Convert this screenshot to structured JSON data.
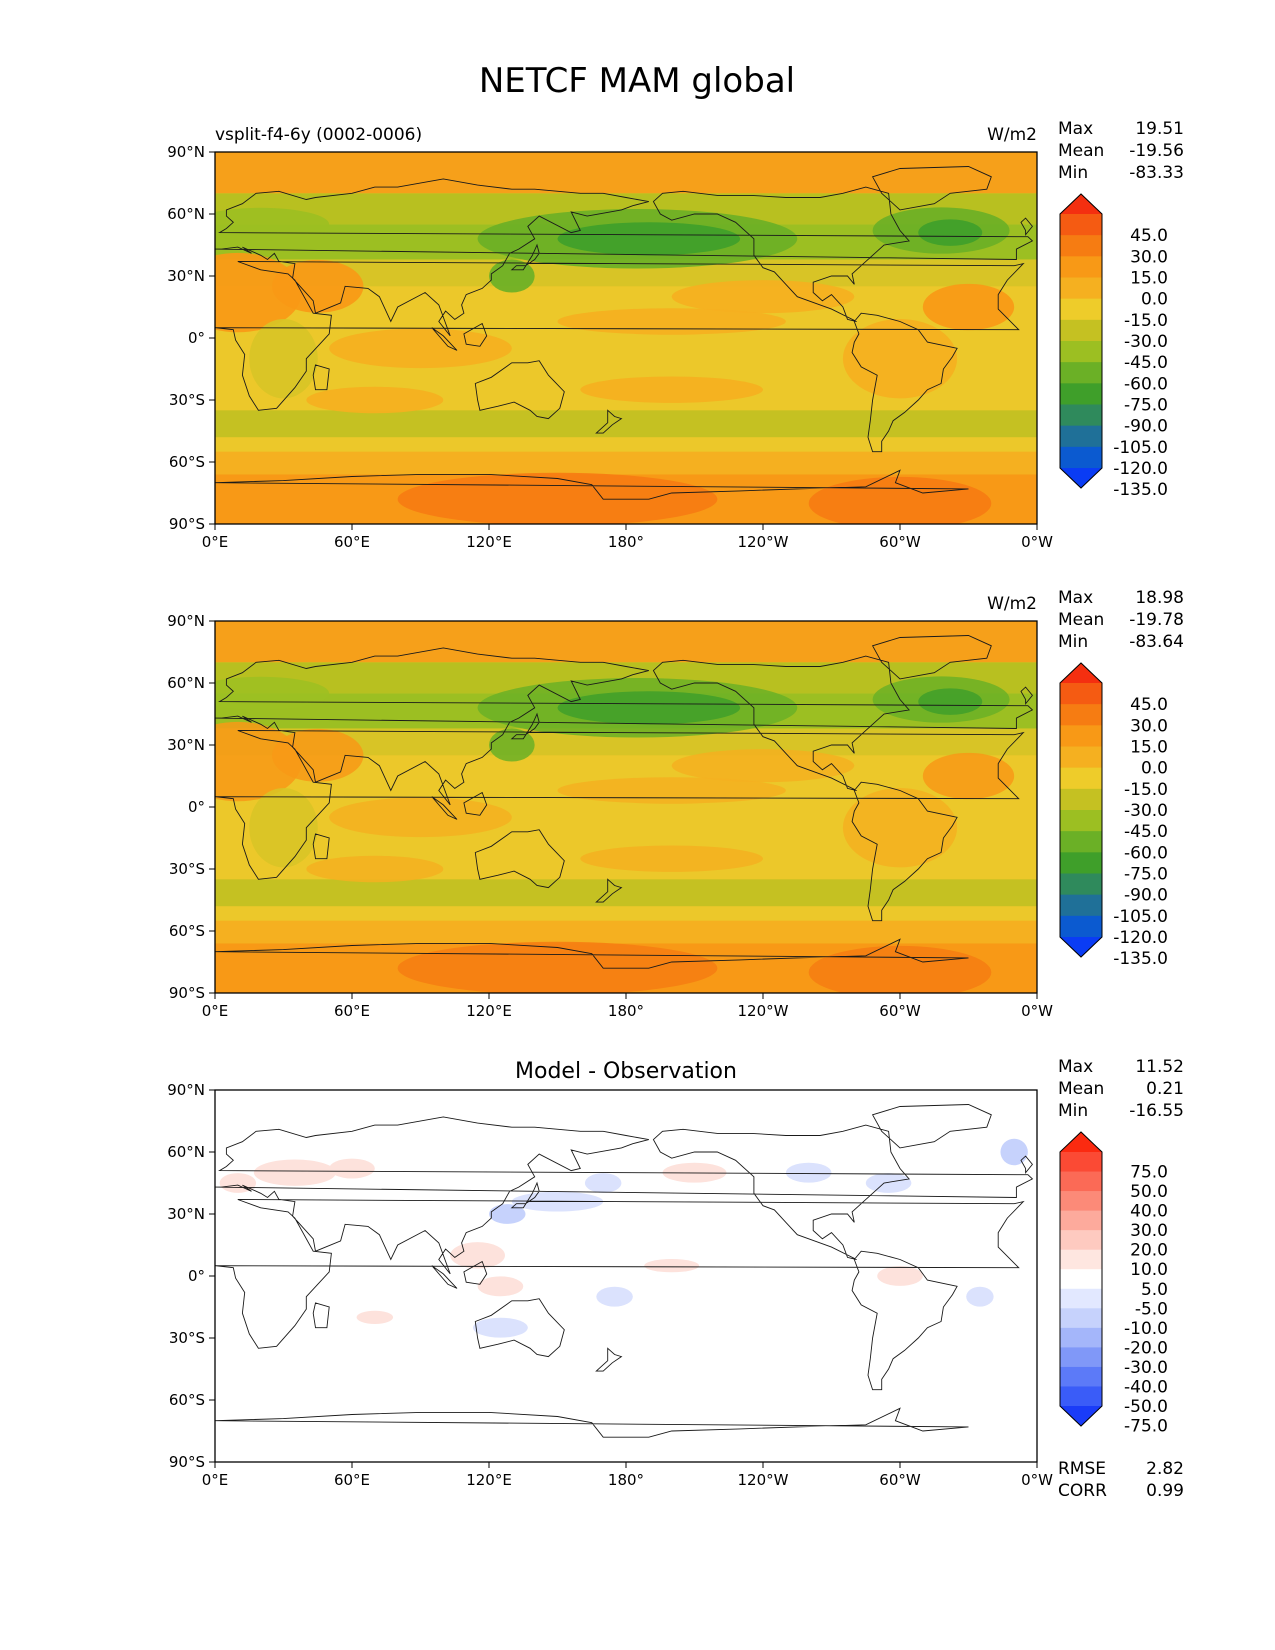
{
  "chart_data": {
    "type": "heatmap",
    "title": "NETCF MAM global",
    "x_ticks": [
      "0°E",
      "60°E",
      "120°E",
      "180°",
      "120°W",
      "60°W",
      "0°W"
    ],
    "y_ticks": [
      "90°N",
      "60°N",
      "30°N",
      "0°",
      "30°S",
      "60°S",
      "90°S"
    ],
    "stat_labels": [
      "Max",
      "Mean",
      "Min"
    ],
    "panels": [
      {
        "left_title": "vsplit-f4-6y (0002-0006)",
        "center_title": "",
        "units": "W/m2",
        "stats": [
          "19.51",
          "-19.56",
          "-83.33"
        ],
        "colorbar_labels": [
          "45.0",
          "30.0",
          "15.0",
          "0.0",
          "-15.0",
          "-30.0",
          "-45.0",
          "-60.0",
          "-75.0",
          "-90.0",
          "-105.0",
          "-120.0",
          "-135.0"
        ],
        "colorbar_colors": [
          "#f42f10",
          "#f55b12",
          "#f67c12",
          "#f89916",
          "#f5b020",
          "#eecc2a",
          "#c5c122",
          "#9cbf22",
          "#6bb026",
          "#3f9f2a",
          "#2f8a5c",
          "#1f7098",
          "#0b5ad0",
          "#0a3cf4"
        ]
      },
      {
        "left_title": "",
        "center_title": "",
        "units": "W/m2",
        "stats": [
          "18.98",
          "-19.78",
          "-83.64"
        ],
        "colorbar_labels": [
          "45.0",
          "30.0",
          "15.0",
          "0.0",
          "-15.0",
          "-30.0",
          "-45.0",
          "-60.0",
          "-75.0",
          "-90.0",
          "-105.0",
          "-120.0",
          "-135.0"
        ],
        "colorbar_colors": [
          "#f42f10",
          "#f55b12",
          "#f67c12",
          "#f89916",
          "#f5b020",
          "#eecc2a",
          "#c5c122",
          "#9cbf22",
          "#6bb026",
          "#3f9f2a",
          "#2f8a5c",
          "#1f7098",
          "#0b5ad0",
          "#0a3cf4"
        ]
      },
      {
        "left_title": "",
        "center_title": "Model - Observation",
        "units": "",
        "stats": [
          "11.52",
          "0.21",
          "-16.55"
        ],
        "colorbar_labels": [
          "75.0",
          "50.0",
          "40.0",
          "30.0",
          "20.0",
          "10.0",
          "5.0",
          "-5.0",
          "-10.0",
          "-20.0",
          "-30.0",
          "-40.0",
          "-50.0",
          "-75.0"
        ],
        "colorbar_colors": [
          "#fb2a10",
          "#fb4a34",
          "#fb6a56",
          "#fc8a78",
          "#fdaa9c",
          "#fecac0",
          "#fee6e0",
          "#ffffff",
          "#e2e8ff",
          "#c6d2fc",
          "#a4b6fa",
          "#8098f8",
          "#5c7af8",
          "#3a5cf8",
          "#1a3cf8"
        ],
        "metrics": [
          {
            "label": "RMSE",
            "value": "2.82"
          },
          {
            "label": "CORR",
            "value": "0.99"
          }
        ]
      }
    ]
  }
}
